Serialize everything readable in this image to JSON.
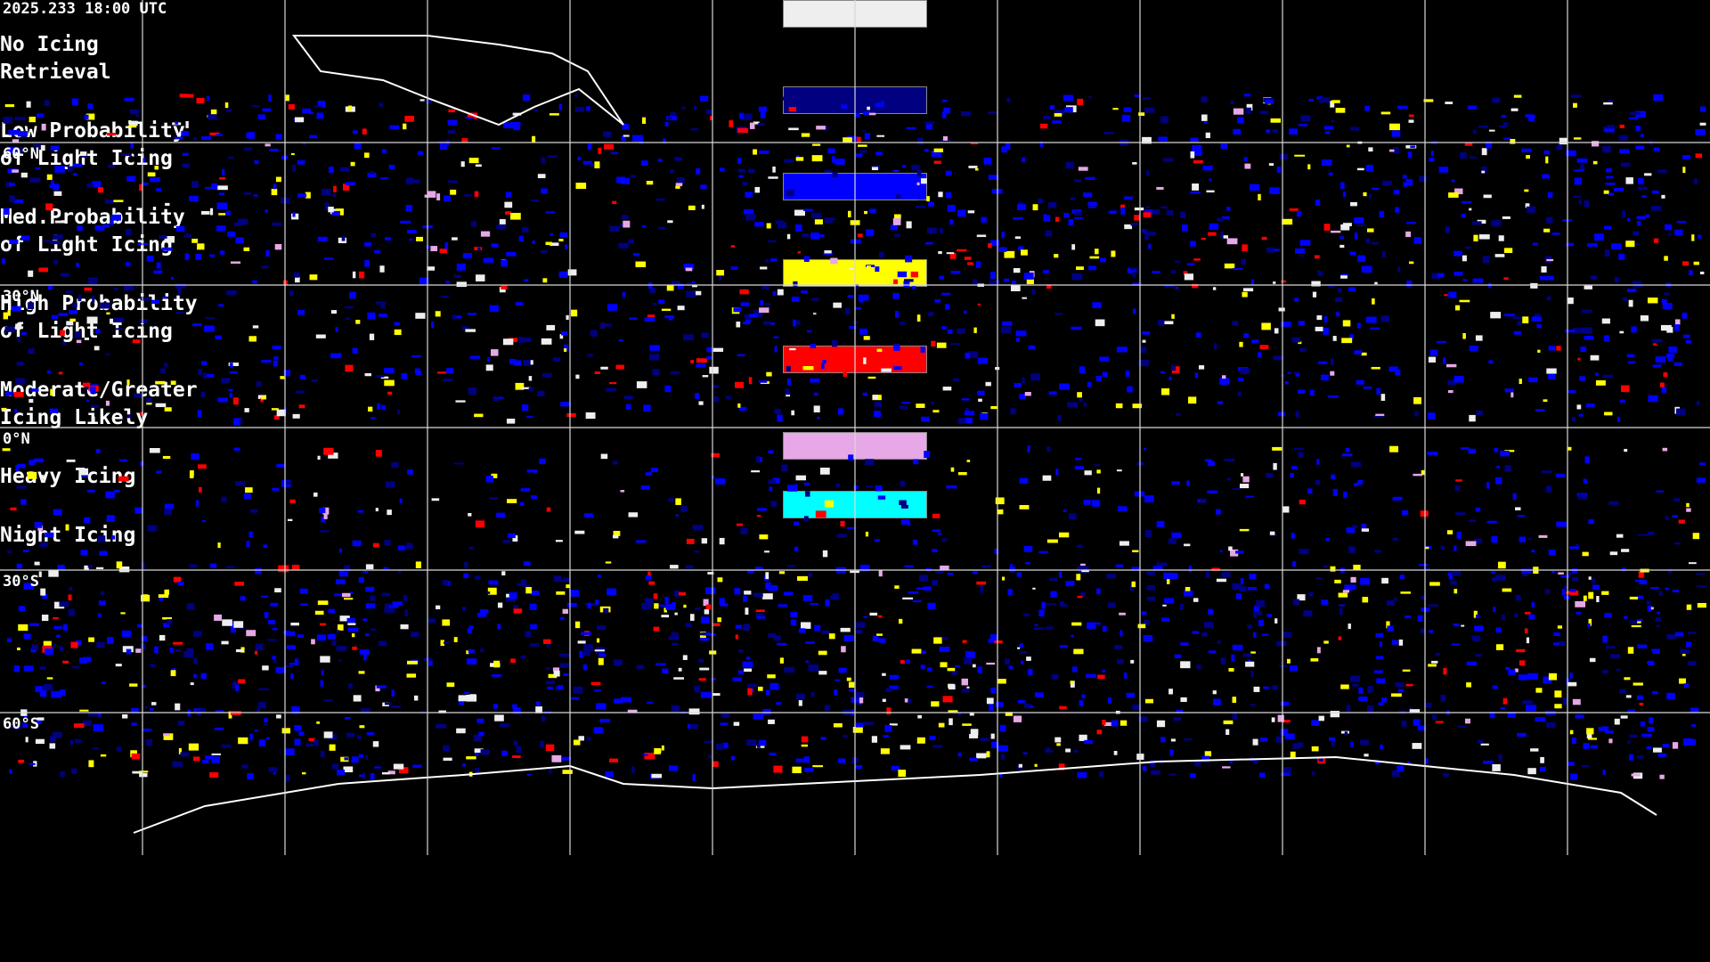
{
  "header": {
    "timestamp": "2025.233 18:00 UTC"
  },
  "latitude_labels": [
    "60°N",
    "30°N",
    "0°N",
    "30°S",
    "60°S"
  ],
  "legend": {
    "items": [
      {
        "color": "#eeeeee",
        "lines": [
          "No Icing",
          "Retrieval"
        ]
      },
      {
        "color": "#000080",
        "lines": [
          "Low Probability",
          "of Light Icing"
        ]
      },
      {
        "color": "#0000ff",
        "lines": [
          "Med.Probability",
          "of Light Icing"
        ]
      },
      {
        "color": "#ffff00",
        "lines": [
          "High Probability",
          "of Light Icing"
        ]
      },
      {
        "color": "#ff0000",
        "lines": [
          "Moderate/Greater",
          "Icing Likely"
        ]
      },
      {
        "color": "#e6a8e6",
        "lines": [
          "Heavy Icing"
        ]
      },
      {
        "color": "#00ffff",
        "lines": [
          "Night Icing"
        ]
      }
    ]
  }
}
